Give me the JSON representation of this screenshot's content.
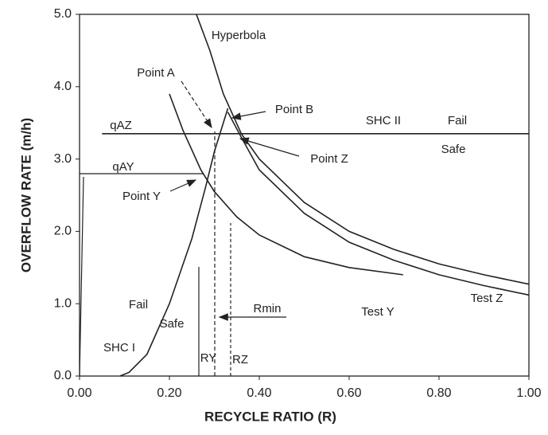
{
  "chart_data": {
    "type": "line",
    "xlabel": "RECYCLE RATIO (R)",
    "ylabel": "OVERFLOW RATE (m/h)",
    "xlim": [
      0,
      1
    ],
    "ylim": [
      0,
      5
    ],
    "xticks": [
      {
        "value": 0,
        "label": "0.00"
      },
      {
        "value": 0.2,
        "label": "0.20"
      },
      {
        "value": 0.4,
        "label": "0.40"
      },
      {
        "value": 0.6,
        "label": "0.60"
      },
      {
        "value": 0.8,
        "label": "0.80"
      },
      {
        "value": 1,
        "label": "1.00"
      }
    ],
    "yticks": [
      {
        "value": 0,
        "label": "0.0"
      },
      {
        "value": 1,
        "label": "1.0"
      },
      {
        "value": 2,
        "label": "2.0"
      },
      {
        "value": 3,
        "label": "3.0"
      },
      {
        "value": 4,
        "label": "4.0"
      },
      {
        "value": 5,
        "label": "5.0"
      }
    ],
    "color": "#222222",
    "series": [
      {
        "name": "Hyperbola",
        "x": [
          0.26,
          0.29,
          0.32,
          0.36,
          0.4,
          0.5,
          0.6,
          0.7,
          0.8,
          0.9,
          1.0
        ],
        "values": [
          5.0,
          4.5,
          3.9,
          3.35,
          3.0,
          2.4,
          2.0,
          1.75,
          1.55,
          1.4,
          1.27
        ]
      },
      {
        "name": "Test Y",
        "x": [
          0.2,
          0.23,
          0.27,
          0.3,
          0.35,
          0.4,
          0.5,
          0.6,
          0.72
        ],
        "values": [
          3.9,
          3.4,
          2.85,
          2.55,
          2.2,
          1.95,
          1.65,
          1.5,
          1.4
        ]
      },
      {
        "name": "Test Z",
        "x": [
          0.33,
          0.36,
          0.4,
          0.5,
          0.6,
          0.7,
          0.8,
          0.9,
          1.0
        ],
        "values": [
          3.65,
          3.3,
          2.85,
          2.25,
          1.85,
          1.6,
          1.4,
          1.25,
          1.12
        ]
      },
      {
        "name": "SHC I",
        "x": [
          0.09,
          0.11,
          0.15,
          0.2,
          0.25,
          0.28,
          0.3,
          0.33
        ],
        "values": [
          0.0,
          0.05,
          0.3,
          1.0,
          1.9,
          2.6,
          3.1,
          3.7
        ]
      },
      {
        "name": "SHC II",
        "x": [
          0.05,
          1.0
        ],
        "values": [
          3.35,
          3.35
        ]
      }
    ],
    "annotations": [
      "Point A",
      "Point B",
      "Point Z",
      "Point Y",
      "qAZ",
      "qAY",
      "Fail",
      "Safe",
      "Fail",
      "Safe",
      "Rmin",
      "RY",
      "RZ"
    ]
  }
}
